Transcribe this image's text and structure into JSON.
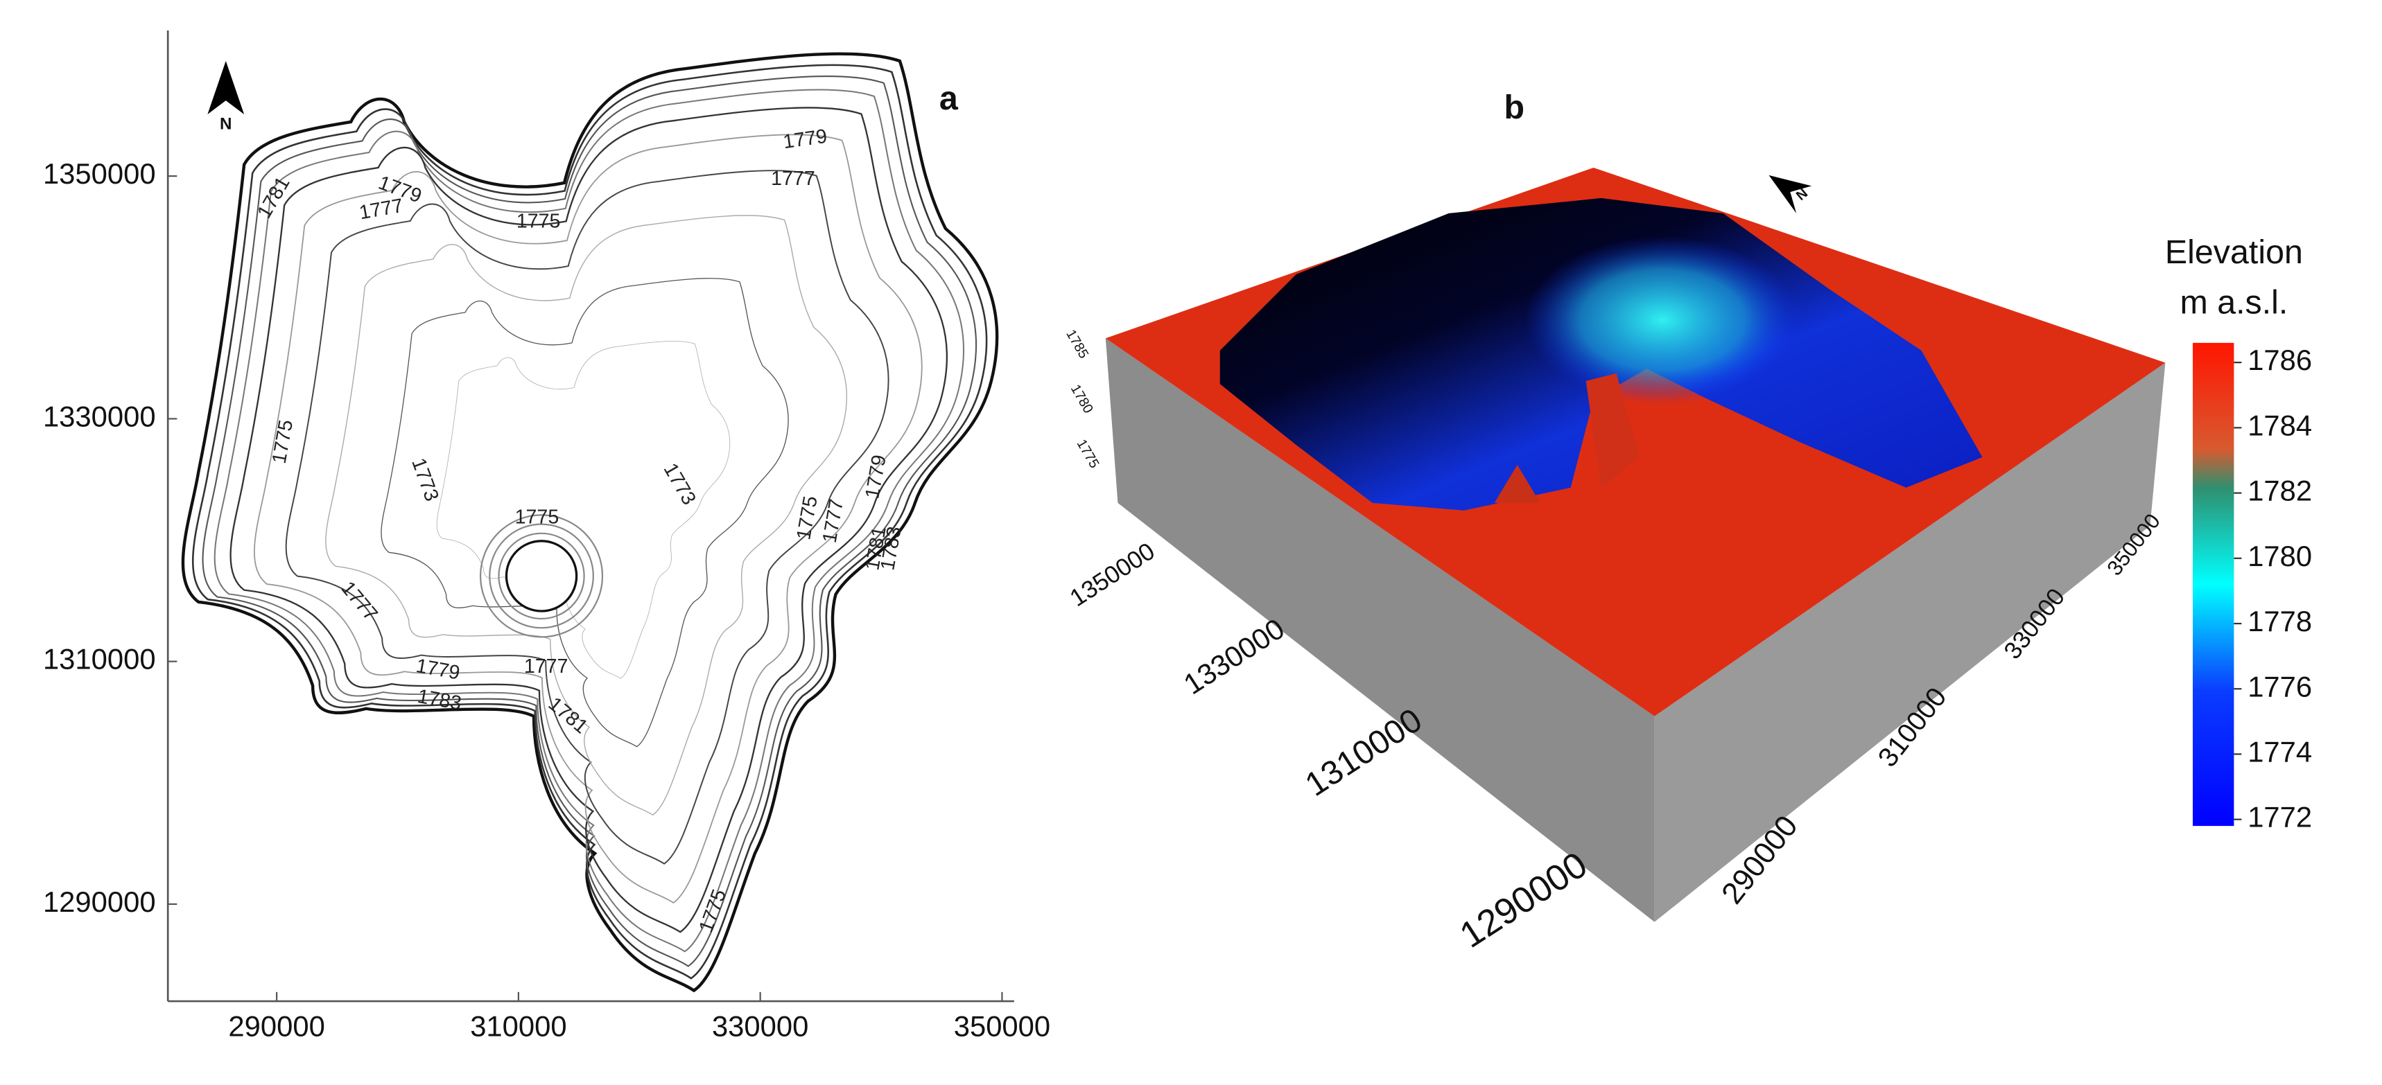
{
  "chart_data": [
    {
      "type": "contour",
      "panel_label": "a",
      "north_label": "N",
      "xlim": [
        281000,
        351000
      ],
      "ylim": [
        1282000,
        1362000
      ],
      "xticks": [
        290000,
        310000,
        330000,
        350000
      ],
      "yticks": [
        1290000,
        1310000,
        1330000,
        1350000
      ],
      "contour_labels": [
        1781,
        1779,
        1777,
        1775,
        1779,
        1777,
        1775,
        1773,
        1773,
        1775,
        1775,
        1777,
        1779,
        1781,
        1783,
        1777,
        1779,
        1777,
        1783,
        1781,
        1775
      ]
    },
    {
      "type": "surface3d",
      "panel_label": "b",
      "north_label": "N",
      "x_axis_labels": [
        290000,
        310000,
        330000,
        350000
      ],
      "y_axis_labels": [
        1290000,
        1310000,
        1330000,
        1350000
      ],
      "z_axis_labels": [
        1785,
        1780,
        1775
      ],
      "colorbar": {
        "title": "Elevation",
        "subtitle": "m a.s.l.",
        "lim": [
          1771.8,
          1786.6
        ],
        "ticks": [
          1772,
          1774,
          1776,
          1778,
          1780,
          1782,
          1784,
          1786
        ]
      }
    }
  ]
}
